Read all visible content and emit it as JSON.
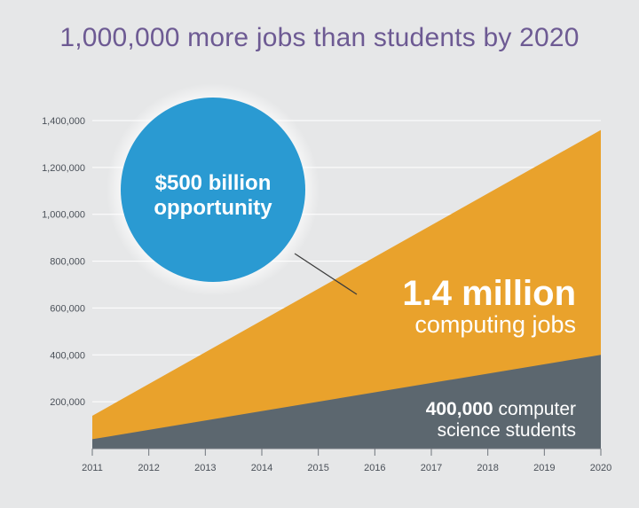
{
  "title": "1,000,000 more jobs than students by 2020",
  "callout": {
    "line1": "$500 billion",
    "line2": "opportunity"
  },
  "jobs_label": {
    "big": "1.4 million",
    "sub": "computing jobs"
  },
  "students_label": {
    "bold": "400,000",
    "rest": " computer",
    "line2": "science students"
  },
  "colors": {
    "background": "#e6e7e8",
    "title": "#6d5a93",
    "jobs": "#e9a22c",
    "students": "#5c676f",
    "bubble": "#2a9ad2"
  },
  "chart_data": {
    "type": "area",
    "title": "1,000,000 more jobs than students by 2020",
    "x": [
      "2011",
      "2012",
      "2013",
      "2014",
      "2015",
      "2016",
      "2017",
      "2018",
      "2019",
      "2020"
    ],
    "y_ticks": [
      "200,000",
      "400,000",
      "600,000",
      "800,000",
      "1,000,000",
      "1,200,000",
      "1,400,000"
    ],
    "y_tick_values": [
      200000,
      400000,
      600000,
      800000,
      1000000,
      1200000,
      1400000
    ],
    "ylim": [
      0,
      1400000
    ],
    "grid": true,
    "series": [
      {
        "name": "computing jobs",
        "start": 140000,
        "end": 1360000
      },
      {
        "name": "computer science students",
        "start": 40000,
        "end": 400000
      }
    ]
  }
}
